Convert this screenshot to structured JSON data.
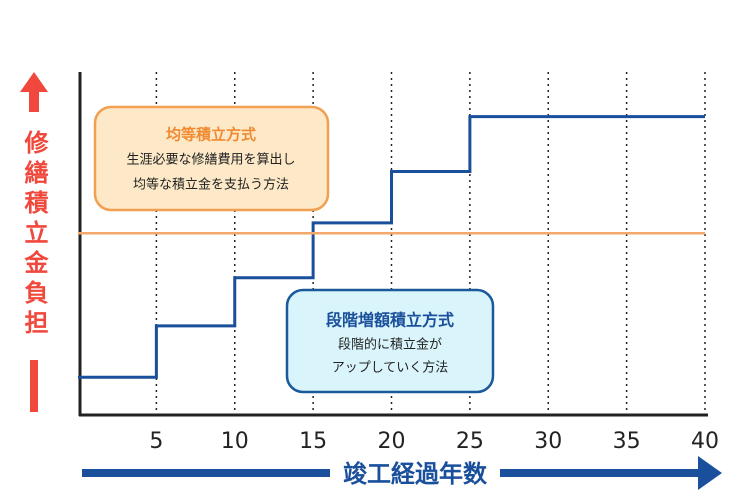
{
  "chart_data": {
    "type": "step-line",
    "x_label": "竣工経過年数",
    "y_label": "修繕積立金負担",
    "xlim": [
      0,
      40
    ],
    "xticks": [
      5,
      10,
      15,
      20,
      25,
      30,
      35,
      40
    ],
    "ylim": [
      0,
      100
    ],
    "grid": "dotted",
    "series": [
      {
        "color": "#1a4f9c",
        "x": [
          0,
          5,
          10,
          15,
          20,
          25,
          40
        ],
        "values": [
          11,
          26,
          40,
          56,
          71,
          87,
          87
        ]
      },
      {
        "color": "#f2a86a",
        "x": [
          0,
          40
        ],
        "values": [
          53,
          53
        ]
      }
    ],
    "annotations": [
      {
        "title": "均等積立方式",
        "lines": [
          "生涯必要な修繕費用を算出し",
          "均等な積立金を支払う方法"
        ]
      },
      {
        "title": "段階増額積立方式",
        "lines": [
          "段階的に積立金が",
          "アップしていく方法"
        ]
      }
    ]
  }
}
